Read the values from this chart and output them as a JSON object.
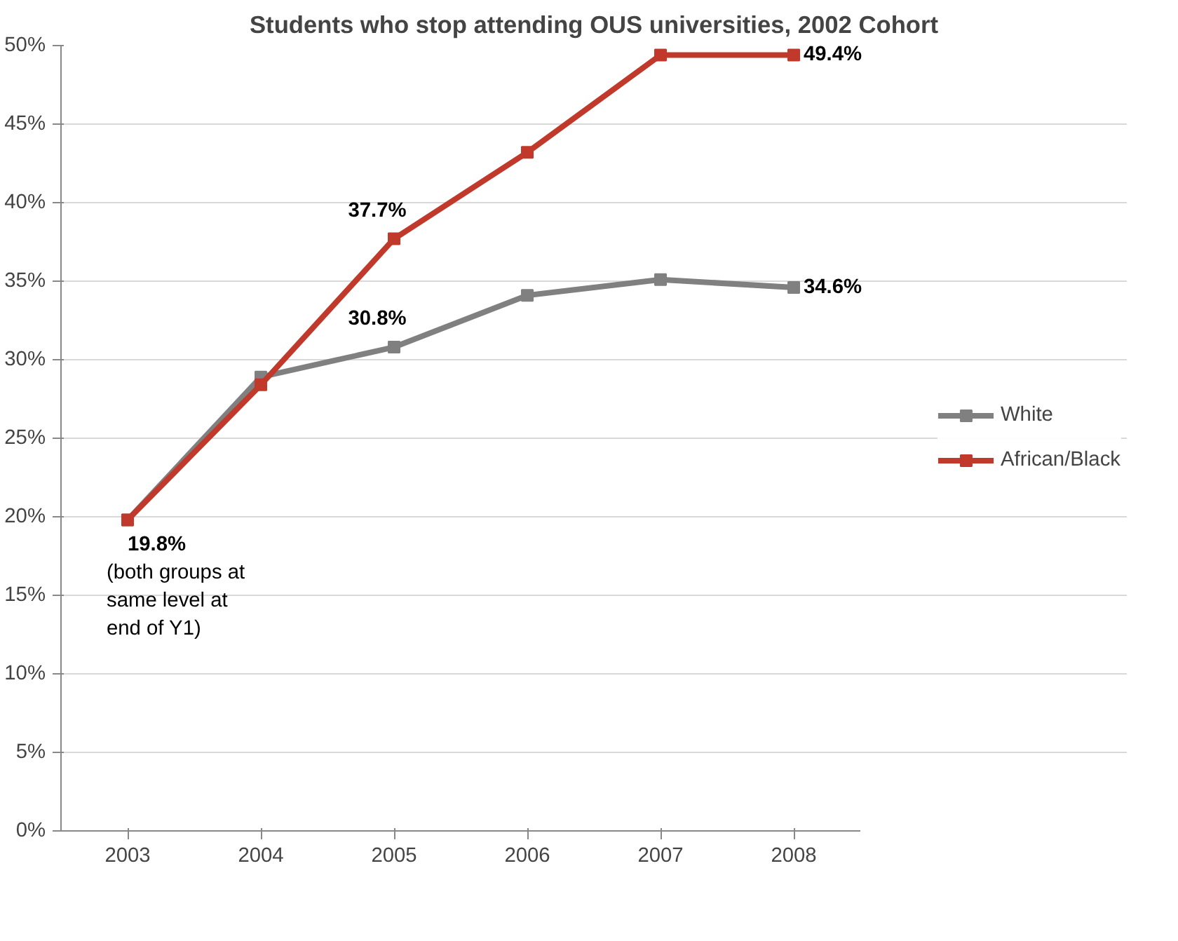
{
  "chart_data": {
    "type": "line",
    "title": "Students who stop attending OUS universities, 2002 Cohort",
    "categories": [
      "2003",
      "2004",
      "2005",
      "2006",
      "2007",
      "2008"
    ],
    "series": [
      {
        "name": "White",
        "color": "#808080",
        "values": [
          19.8,
          28.9,
          30.8,
          34.1,
          35.1,
          34.6
        ],
        "value_labels": [
          null,
          null,
          "30.8%",
          null,
          null,
          "34.6%"
        ]
      },
      {
        "name": "African/Black",
        "color": "#c0392b",
        "values": [
          19.8,
          28.4,
          37.7,
          43.2,
          49.4,
          49.4
        ],
        "value_labels": [
          "19.8%",
          null,
          "37.7%",
          null,
          null,
          "49.4%"
        ]
      }
    ],
    "annotations": [
      {
        "text": "(both groups at same level at end of Y1)",
        "x": "2003",
        "y": 19.8
      }
    ],
    "ylim": [
      0,
      50
    ],
    "yticks": [
      {
        "value": 0,
        "label": "0%"
      },
      {
        "value": 5,
        "label": "5%"
      },
      {
        "value": 10,
        "label": "10%"
      },
      {
        "value": 15,
        "label": "15%"
      },
      {
        "value": 20,
        "label": "20%"
      },
      {
        "value": 25,
        "label": "25%"
      },
      {
        "value": 30,
        "label": "30%"
      },
      {
        "value": 35,
        "label": "35%"
      },
      {
        "value": 40,
        "label": "40%"
      },
      {
        "value": 45,
        "label": "45%"
      },
      {
        "value": 50,
        "label": "50%"
      }
    ],
    "grid": "y",
    "legend": "right",
    "marker": "square",
    "line_style": "solid"
  }
}
